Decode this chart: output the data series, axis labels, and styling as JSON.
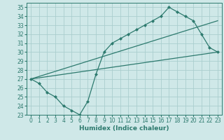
{
  "xlabel": "Humidex (Indice chaleur)",
  "bg_color": "#cfe8e8",
  "line_color": "#2d7a6e",
  "grid_color": "#aacece",
  "xlim": [
    -0.5,
    23.5
  ],
  "ylim": [
    23,
    35.5
  ],
  "xticks": [
    0,
    1,
    2,
    3,
    4,
    5,
    6,
    7,
    8,
    9,
    10,
    11,
    12,
    13,
    14,
    15,
    16,
    17,
    18,
    19,
    20,
    21,
    22,
    23
  ],
  "yticks": [
    23,
    24,
    25,
    26,
    27,
    28,
    29,
    30,
    31,
    32,
    33,
    34,
    35
  ],
  "line1_x": [
    0,
    1,
    2,
    3,
    4,
    5,
    6,
    7,
    8,
    9,
    10,
    11,
    12,
    13,
    14,
    15,
    16,
    17,
    18,
    19,
    20,
    21,
    22,
    23
  ],
  "line1_y": [
    27,
    26.5,
    25.5,
    25,
    24,
    23.5,
    23,
    24.5,
    27.5,
    30,
    31,
    31.5,
    32,
    32.5,
    33,
    33.5,
    34,
    35,
    34.5,
    34,
    33.5,
    32,
    30.5,
    30
  ],
  "line2_x": [
    0,
    23
  ],
  "line2_y": [
    27,
    30
  ],
  "line3_x": [
    0,
    23
  ],
  "line3_y": [
    27,
    33.5
  ],
  "tick_fontsize": 5.5,
  "xlabel_fontsize": 6.5
}
